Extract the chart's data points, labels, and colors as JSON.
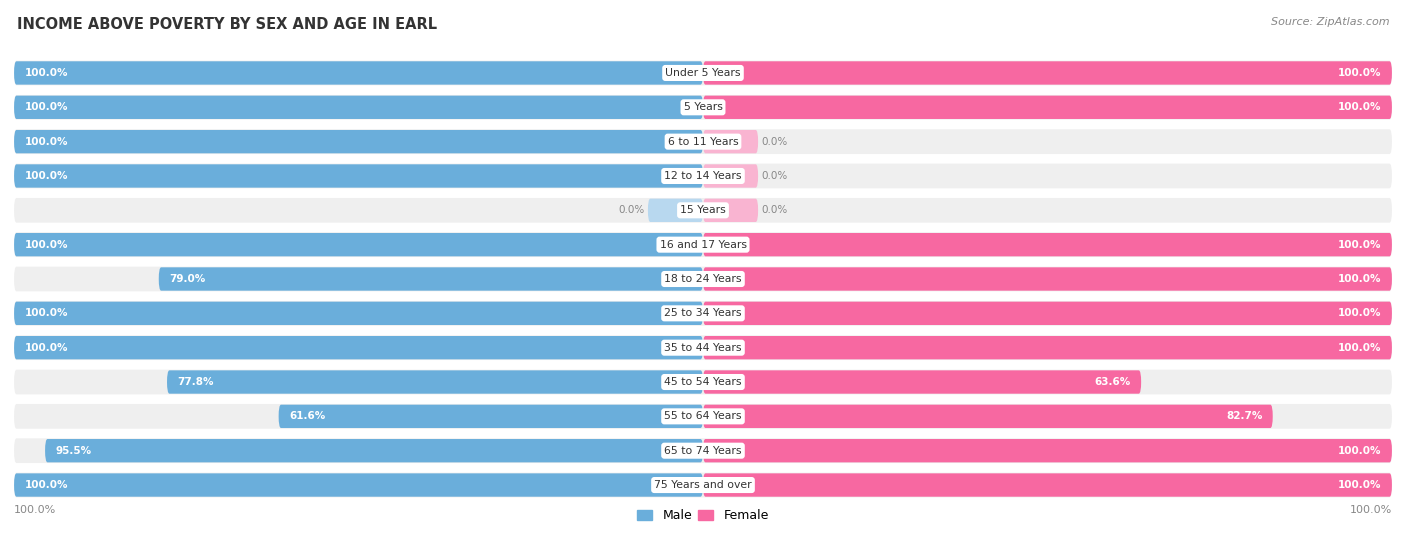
{
  "title": "INCOME ABOVE POVERTY BY SEX AND AGE IN EARL",
  "source": "Source: ZipAtlas.com",
  "categories": [
    "Under 5 Years",
    "5 Years",
    "6 to 11 Years",
    "12 to 14 Years",
    "15 Years",
    "16 and 17 Years",
    "18 to 24 Years",
    "25 to 34 Years",
    "35 to 44 Years",
    "45 to 54 Years",
    "55 to 64 Years",
    "65 to 74 Years",
    "75 Years and over"
  ],
  "male_values": [
    100.0,
    100.0,
    100.0,
    100.0,
    0.0,
    100.0,
    79.0,
    100.0,
    100.0,
    77.8,
    61.6,
    95.5,
    100.0
  ],
  "female_values": [
    100.0,
    100.0,
    0.0,
    0.0,
    0.0,
    100.0,
    100.0,
    100.0,
    100.0,
    63.6,
    82.7,
    100.0,
    100.0
  ],
  "male_color": "#6aaedb",
  "female_color": "#f768a1",
  "male_color_light": "#b8d8ef",
  "female_color_light": "#f9b4d1",
  "row_bg_color": "#efefef",
  "bar_height": 0.68,
  "xlim_left": -100,
  "xlim_right": 100,
  "stub_size": 8
}
